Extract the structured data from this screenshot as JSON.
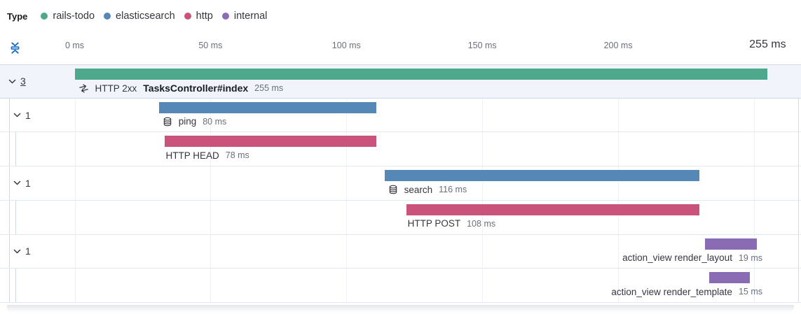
{
  "colors": {
    "rails-todo": "#4da88c",
    "elasticsearch": "#5587b7",
    "http": "#ca537b",
    "internal": "#8a6cb4",
    "fold_icon": "#1d6bc2",
    "text_primary": "#343741",
    "text_secondary": "#69707d"
  },
  "legend": {
    "title": "Type",
    "items": [
      {
        "label": "rails-todo",
        "type": "rails-todo"
      },
      {
        "label": "elasticsearch",
        "type": "elasticsearch"
      },
      {
        "label": "http",
        "type": "http"
      },
      {
        "label": "internal",
        "type": "internal"
      }
    ]
  },
  "axis": {
    "ticks": [
      {
        "ms": 0,
        "label": "0 ms"
      },
      {
        "ms": 50,
        "label": "50 ms"
      },
      {
        "ms": 100,
        "label": "100 ms"
      },
      {
        "ms": 150,
        "label": "150 ms"
      },
      {
        "ms": 200,
        "label": "200 ms"
      }
    ],
    "end": {
      "ms": 255,
      "label": "255 ms"
    },
    "gridline_ms": [
      0,
      50,
      100,
      150,
      200,
      250
    ],
    "collapse_icon": "fold-icon"
  },
  "chart_data": {
    "type": "waterfall",
    "unit": "ms",
    "xlim": [
      0,
      255
    ],
    "rows": [
      {
        "id": "transaction",
        "depth": 0,
        "count": "3",
        "count_underlined": true,
        "selected": true,
        "type": "rails-todo",
        "offset_ms": 0,
        "duration_ms": 255,
        "icon": "transaction-icon",
        "prefix": "HTTP 2xx",
        "name": "TasksController#index",
        "name_bold": true,
        "duration_label": "255 ms",
        "label_align": "left",
        "guides": []
      },
      {
        "id": "ping",
        "depth": 1,
        "count": "1",
        "count_underlined": false,
        "selected": false,
        "type": "elasticsearch",
        "offset_ms": 31,
        "duration_ms": 80,
        "icon": "database-icon",
        "prefix": "",
        "name": "ping",
        "name_bold": false,
        "duration_label": "80 ms",
        "label_align": "left",
        "guides": [
          13
        ]
      },
      {
        "id": "http-head",
        "depth": 2,
        "count": "",
        "count_underlined": false,
        "selected": false,
        "type": "http",
        "offset_ms": 33,
        "duration_ms": 78,
        "icon": "",
        "prefix": "",
        "name": "HTTP HEAD",
        "name_bold": false,
        "duration_label": "78 ms",
        "label_align": "left",
        "guides": [
          13,
          22
        ]
      },
      {
        "id": "search",
        "depth": 1,
        "count": "1",
        "count_underlined": false,
        "selected": false,
        "type": "elasticsearch",
        "offset_ms": 114,
        "duration_ms": 116,
        "icon": "database-icon",
        "prefix": "",
        "name": "search",
        "name_bold": false,
        "duration_label": "116 ms",
        "label_align": "left",
        "guides": [
          13
        ]
      },
      {
        "id": "http-post",
        "depth": 2,
        "count": "",
        "count_underlined": false,
        "selected": false,
        "type": "http",
        "offset_ms": 122,
        "duration_ms": 108,
        "icon": "",
        "prefix": "",
        "name": "HTTP POST",
        "name_bold": false,
        "duration_label": "108 ms",
        "label_align": "left",
        "guides": [
          13,
          22
        ]
      },
      {
        "id": "render-layout",
        "depth": 1,
        "count": "1",
        "count_underlined": false,
        "selected": false,
        "type": "internal",
        "offset_ms": 232,
        "duration_ms": 19,
        "icon": "",
        "prefix": "",
        "name": "action_view render_layout",
        "name_bold": false,
        "duration_label": "19 ms",
        "label_align": "right",
        "guides": [
          13
        ]
      },
      {
        "id": "render-template",
        "depth": 2,
        "count": "",
        "count_underlined": false,
        "selected": false,
        "type": "internal",
        "offset_ms": 233.5,
        "duration_ms": 15,
        "icon": "",
        "prefix": "",
        "name": "action_view render_template",
        "name_bold": false,
        "duration_label": "15 ms",
        "label_align": "right",
        "guides": [
          13,
          22
        ]
      }
    ]
  }
}
